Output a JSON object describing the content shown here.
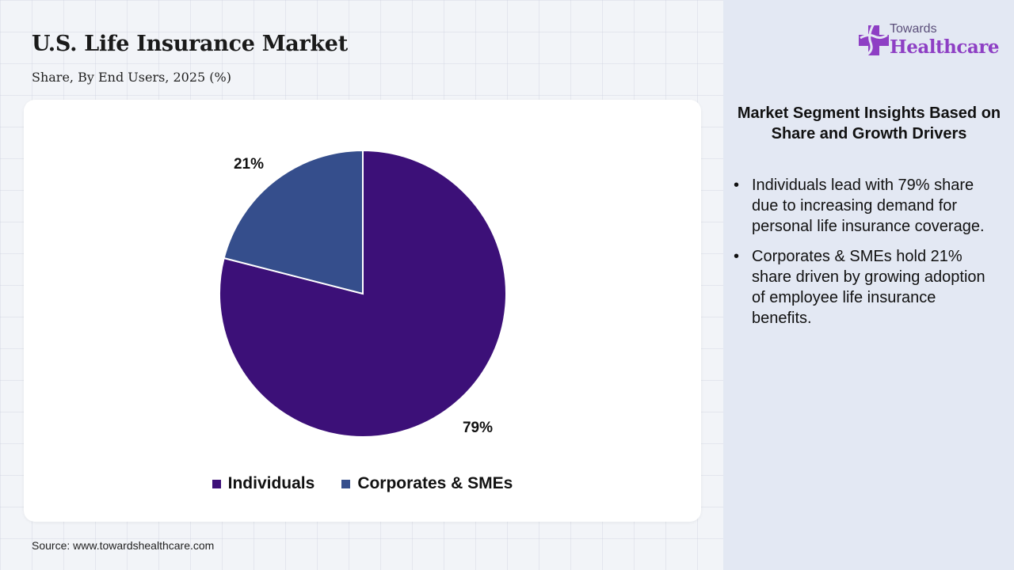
{
  "title": "U.S. Life Insurance Market",
  "subtitle": "Share, By End Users, 2025 (%)",
  "source": "Source: www.towardshealthcare.com",
  "logo": {
    "line1": "Towards",
    "line2": "Healthcare"
  },
  "insights": {
    "heading": "Market Segment Insights Based on Share and Growth Drivers",
    "bullet_glyph": "•",
    "items": [
      "Individuals lead with 79% share due to increasing demand for personal life insurance coverage.",
      "Corporates & SMEs hold 21% share driven by growing adoption of employee life insurance benefits."
    ]
  },
  "colors": {
    "individuals": "#3c1078",
    "corporates": "#354e8c",
    "logo_purple": "#8e3fc4",
    "panel": "#e3e8f3"
  },
  "chart_data": {
    "type": "pie",
    "title": "U.S. Life Insurance Market",
    "subtitle": "Share, By End Users, 2025 (%)",
    "categories": [
      "Individuals",
      "Corporates & SMEs"
    ],
    "values": [
      79,
      21
    ],
    "labels": [
      "79%",
      "21%"
    ],
    "unit": "%",
    "legend_position": "bottom",
    "start_angle": "12 o'clock",
    "direction": "clockwise"
  }
}
